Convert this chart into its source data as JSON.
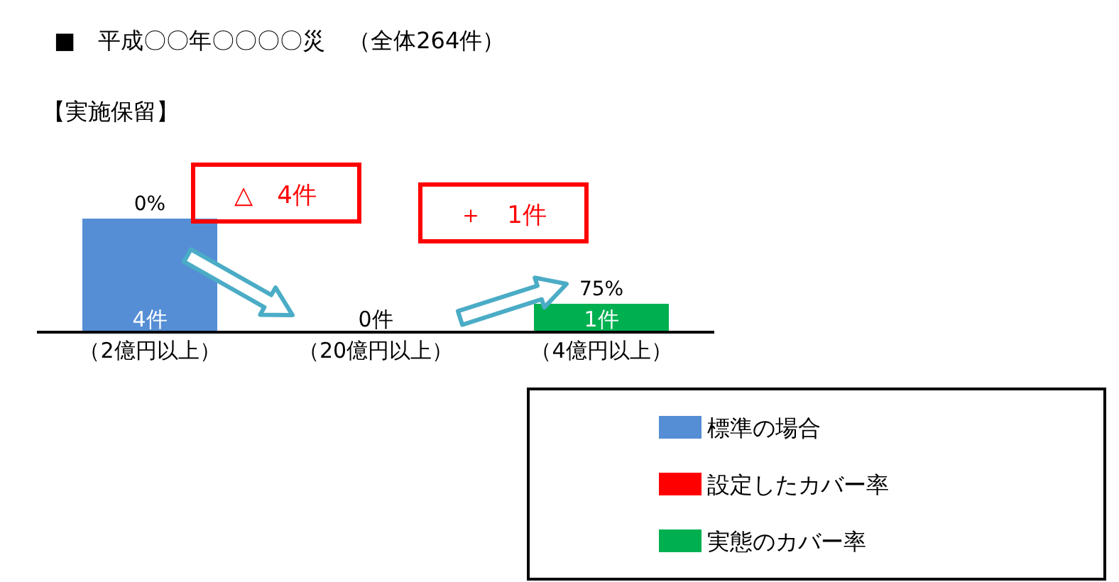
{
  "chart_data": {
    "type": "bar",
    "title": "■　平成〇〇年〇〇〇〇災　（全体264件）",
    "subtitle": "【実施保留】",
    "categories": [
      "（2億円以上）",
      "（20億円以上）",
      "（4億円以上）"
    ],
    "series": [
      {
        "name": "標準の場合",
        "color": "#558ed5",
        "values": [
          4,
          null,
          null
        ],
        "value_labels": [
          "4件",
          null,
          null
        ]
      },
      {
        "name": "設定したカバー率",
        "color": "#ff0000",
        "values": [
          null,
          0,
          null
        ],
        "value_labels": [
          null,
          "0件",
          null
        ]
      },
      {
        "name": "実態のカバー率",
        "color": "#00b050",
        "values": [
          null,
          null,
          1
        ],
        "value_labels": [
          null,
          null,
          "1件"
        ]
      }
    ],
    "annotations": [
      {
        "text": "0%",
        "x": "（2億円以上）",
        "y": 4
      },
      {
        "text": "75%",
        "x": "（4億円以上）",
        "y": 1
      },
      "△　4件",
      "＋　1件"
    ],
    "legend": "bottom right"
  }
}
